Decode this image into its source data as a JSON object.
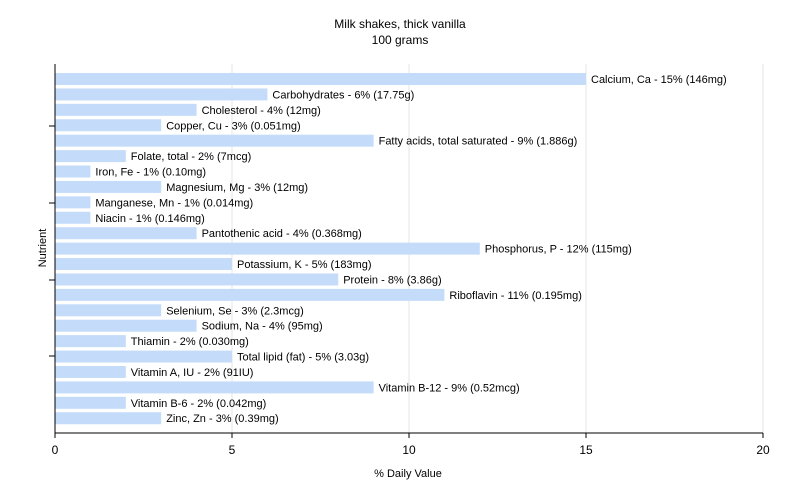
{
  "chart_data": {
    "type": "bar",
    "orientation": "horizontal",
    "title": "Milk shakes, thick vanilla",
    "subtitle": "100 grams",
    "xlabel": "% Daily Value",
    "ylabel": "Nutrient",
    "xlim": [
      0,
      20
    ],
    "xticks": [
      0,
      5,
      10,
      15,
      20
    ],
    "grid": true,
    "bar_color": "#c4dcfa",
    "categories": [
      "Calcium, Ca",
      "Carbohydrates",
      "Cholesterol",
      "Copper, Cu",
      "Fatty acids, total saturated",
      "Folate, total",
      "Iron, Fe",
      "Magnesium, Mg",
      "Manganese, Mn",
      "Niacin",
      "Pantothenic acid",
      "Phosphorus, P",
      "Potassium, K",
      "Protein",
      "Riboflavin",
      "Selenium, Se",
      "Sodium, Na",
      "Thiamin",
      "Total lipid (fat)",
      "Vitamin A, IU",
      "Vitamin B-12",
      "Vitamin B-6",
      "Zinc, Zn"
    ],
    "values": [
      15,
      6,
      4,
      3,
      9,
      2,
      1,
      3,
      1,
      1,
      4,
      12,
      5,
      8,
      11,
      3,
      4,
      2,
      5,
      2,
      9,
      2,
      3
    ],
    "labels": [
      "Calcium, Ca - 15% (146mg)",
      "Carbohydrates - 6% (17.75g)",
      "Cholesterol - 4% (12mg)",
      "Copper, Cu - 3% (0.051mg)",
      "Fatty acids, total saturated - 9% (1.886g)",
      "Folate, total - 2% (7mcg)",
      "Iron, Fe - 1% (0.10mg)",
      "Magnesium, Mg - 3% (12mg)",
      "Manganese, Mn - 1% (0.014mg)",
      "Niacin - 1% (0.146mg)",
      "Pantothenic acid - 4% (0.368mg)",
      "Phosphorus, P - 12% (115mg)",
      "Potassium, K - 5% (183mg)",
      "Protein - 8% (3.86g)",
      "Riboflavin - 11% (0.195mg)",
      "Selenium, Se - 3% (2.3mcg)",
      "Sodium, Na - 4% (95mg)",
      "Thiamin - 2% (0.030mg)",
      "Total lipid (fat) - 5% (3.03g)",
      "Vitamin A, IU - 2% (91IU)",
      "Vitamin B-12 - 9% (0.52mcg)",
      "Vitamin B-6 - 2% (0.042mg)",
      "Zinc, Zn - 3% (0.39mg)"
    ]
  }
}
